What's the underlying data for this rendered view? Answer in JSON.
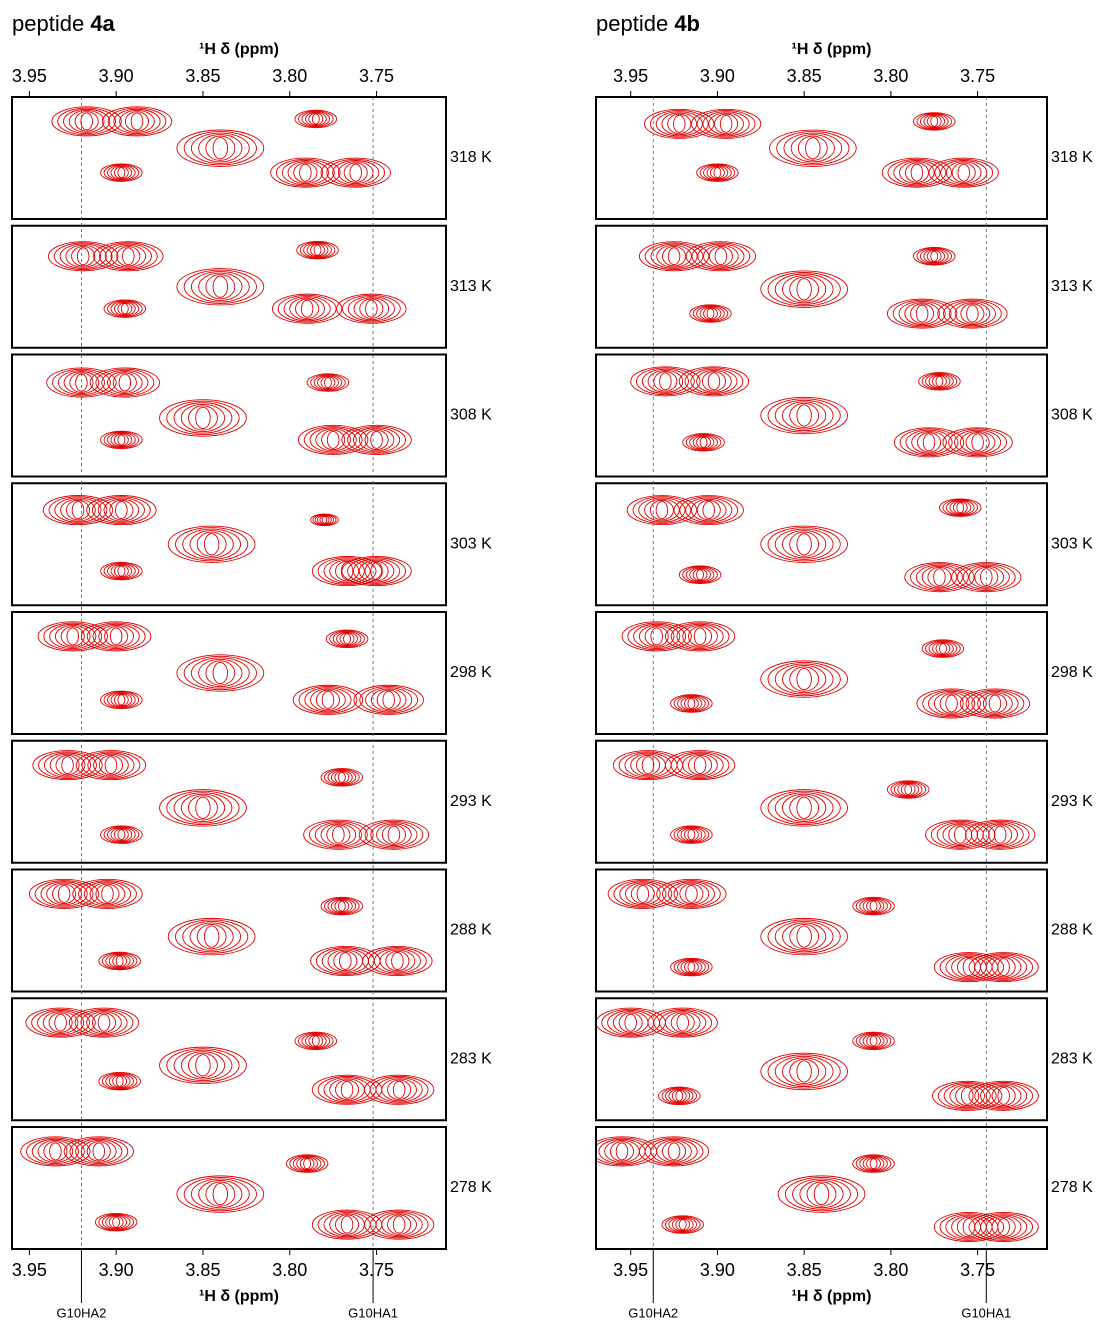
{
  "chart_data": [
    {
      "type": "contour",
      "title": "peptide",
      "title_bold": "4a",
      "xlabel": "¹H δ (ppm)",
      "color": "#e00000",
      "xlim": [
        3.96,
        3.71
      ],
      "xticks": [
        3.95,
        {
          "value": 3.9,
          "label": "3.90"
        },
        3.85,
        {
          "value": 3.8,
          "label": "3.80"
        },
        3.75
      ],
      "ylim": [
        0,
        1
      ],
      "reference_lines": [
        {
          "value": 3.92,
          "label": "G10HA2"
        },
        {
          "value": 3.752,
          "label": "G10HA1"
        }
      ],
      "panels": [
        {
          "label": "318 K",
          "peaks": [
            [
              3.917,
              0.2,
              0.02
            ],
            [
              3.888,
              0.2,
              0.02
            ],
            [
              3.785,
              0.18,
              0.012
            ],
            [
              3.897,
              0.62,
              0.012
            ],
            [
              3.791,
              0.62,
              0.02
            ],
            [
              3.762,
              0.62,
              0.02
            ],
            [
              3.84,
              0.42,
              0.025
            ]
          ]
        },
        {
          "label": "313 K",
          "peaks": [
            [
              3.919,
              0.25,
              0.02
            ],
            [
              3.893,
              0.25,
              0.02
            ],
            [
              3.784,
              0.2,
              0.012
            ],
            [
              3.895,
              0.68,
              0.012
            ],
            [
              3.79,
              0.68,
              0.02
            ],
            [
              3.753,
              0.68,
              0.02
            ],
            [
              3.84,
              0.5,
              0.025
            ]
          ]
        },
        {
          "label": "308 K",
          "peaks": [
            [
              3.92,
              0.23,
              0.02
            ],
            [
              3.895,
              0.23,
              0.02
            ],
            [
              3.778,
              0.23,
              0.012
            ],
            [
              3.897,
              0.7,
              0.012
            ],
            [
              3.775,
              0.7,
              0.02
            ],
            [
              3.75,
              0.7,
              0.02
            ],
            [
              3.85,
              0.52,
              0.025
            ]
          ]
        },
        {
          "label": "303 K",
          "peaks": [
            [
              3.922,
              0.22,
              0.02
            ],
            [
              3.897,
              0.22,
              0.02
            ],
            [
              3.78,
              0.3,
              0.008
            ],
            [
              3.897,
              0.72,
              0.012
            ],
            [
              3.767,
              0.72,
              0.02
            ],
            [
              3.75,
              0.72,
              0.02
            ],
            [
              3.845,
              0.5,
              0.025
            ]
          ]
        },
        {
          "label": "298 K",
          "peaks": [
            [
              3.925,
              0.2,
              0.02
            ],
            [
              3.9,
              0.2,
              0.02
            ],
            [
              3.767,
              0.22,
              0.012
            ],
            [
              3.897,
              0.72,
              0.012
            ],
            [
              3.778,
              0.72,
              0.02
            ],
            [
              3.743,
              0.72,
              0.02
            ],
            [
              3.84,
              0.5,
              0.025
            ]
          ]
        },
        {
          "label": "293 K",
          "peaks": [
            [
              3.928,
              0.2,
              0.02
            ],
            [
              3.903,
              0.2,
              0.02
            ],
            [
              3.77,
              0.3,
              0.012
            ],
            [
              3.897,
              0.77,
              0.012
            ],
            [
              3.772,
              0.77,
              0.02
            ],
            [
              3.74,
              0.77,
              0.02
            ],
            [
              3.85,
              0.55,
              0.025
            ]
          ]
        },
        {
          "label": "288 K",
          "peaks": [
            [
              3.93,
              0.2,
              0.02
            ],
            [
              3.905,
              0.2,
              0.02
            ],
            [
              3.77,
              0.3,
              0.012
            ],
            [
              3.898,
              0.75,
              0.012
            ],
            [
              3.768,
              0.75,
              0.02
            ],
            [
              3.738,
              0.75,
              0.02
            ],
            [
              3.845,
              0.55,
              0.025
            ]
          ]
        },
        {
          "label": "283 K",
          "peaks": [
            [
              3.932,
              0.2,
              0.02
            ],
            [
              3.907,
              0.2,
              0.02
            ],
            [
              3.785,
              0.35,
              0.012
            ],
            [
              3.898,
              0.68,
              0.012
            ],
            [
              3.767,
              0.75,
              0.02
            ],
            [
              3.737,
              0.75,
              0.02
            ],
            [
              3.85,
              0.55,
              0.025
            ]
          ]
        },
        {
          "label": "278 K",
          "peaks": [
            [
              3.935,
              0.2,
              0.02
            ],
            [
              3.91,
              0.2,
              0.02
            ],
            [
              3.79,
              0.3,
              0.012
            ],
            [
              3.9,
              0.78,
              0.012
            ],
            [
              3.767,
              0.8,
              0.02
            ],
            [
              3.737,
              0.8,
              0.02
            ],
            [
              3.84,
              0.55,
              0.025
            ]
          ]
        }
      ]
    },
    {
      "type": "contour",
      "title": "peptide",
      "title_bold": "4b",
      "xlabel": "¹H δ (ppm)",
      "color": "#e00000",
      "xlim": [
        3.97,
        3.71
      ],
      "xticks": [
        3.95,
        {
          "value": 3.9,
          "label": "3.90"
        },
        3.85,
        {
          "value": 3.8,
          "label": "3.80"
        },
        3.75
      ],
      "ylim": [
        0,
        1
      ],
      "reference_lines": [
        {
          "value": 3.937,
          "label": "G10HA2"
        },
        {
          "value": 3.745,
          "label": "G10HA1"
        }
      ],
      "panels": [
        {
          "label": "318 K",
          "peaks": [
            [
              3.922,
              0.22,
              0.02
            ],
            [
              3.895,
              0.22,
              0.02
            ],
            [
              3.775,
              0.2,
              0.012
            ],
            [
              3.9,
              0.62,
              0.012
            ],
            [
              3.785,
              0.62,
              0.02
            ],
            [
              3.758,
              0.62,
              0.02
            ],
            [
              3.845,
              0.42,
              0.025
            ]
          ]
        },
        {
          "label": "313 K",
          "peaks": [
            [
              3.925,
              0.25,
              0.02
            ],
            [
              3.898,
              0.25,
              0.02
            ],
            [
              3.775,
              0.25,
              0.012
            ],
            [
              3.904,
              0.72,
              0.012
            ],
            [
              3.782,
              0.72,
              0.02
            ],
            [
              3.753,
              0.72,
              0.02
            ],
            [
              3.85,
              0.52,
              0.025
            ]
          ]
        },
        {
          "label": "308 K",
          "peaks": [
            [
              3.93,
              0.22,
              0.02
            ],
            [
              3.902,
              0.22,
              0.02
            ],
            [
              3.772,
              0.22,
              0.012
            ],
            [
              3.908,
              0.72,
              0.012
            ],
            [
              3.778,
              0.72,
              0.02
            ],
            [
              3.75,
              0.72,
              0.02
            ],
            [
              3.85,
              0.5,
              0.025
            ]
          ]
        },
        {
          "label": "303 K",
          "peaks": [
            [
              3.932,
              0.22,
              0.02
            ],
            [
              3.905,
              0.22,
              0.02
            ],
            [
              3.76,
              0.2,
              0.012
            ],
            [
              3.91,
              0.75,
              0.012
            ],
            [
              3.772,
              0.77,
              0.02
            ],
            [
              3.745,
              0.77,
              0.02
            ],
            [
              3.85,
              0.5,
              0.025
            ]
          ]
        },
        {
          "label": "298 K",
          "peaks": [
            [
              3.935,
              0.2,
              0.02
            ],
            [
              3.91,
              0.2,
              0.02
            ],
            [
              3.77,
              0.3,
              0.012
            ],
            [
              3.915,
              0.75,
              0.012
            ],
            [
              3.765,
              0.75,
              0.02
            ],
            [
              3.74,
              0.75,
              0.02
            ],
            [
              3.85,
              0.55,
              0.025
            ]
          ]
        },
        {
          "label": "293 K",
          "peaks": [
            [
              3.94,
              0.2,
              0.02
            ],
            [
              3.91,
              0.2,
              0.02
            ],
            [
              3.79,
              0.4,
              0.012
            ],
            [
              3.915,
              0.77,
              0.012
            ],
            [
              3.76,
              0.77,
              0.02
            ],
            [
              3.737,
              0.77,
              0.02
            ],
            [
              3.85,
              0.55,
              0.025
            ]
          ]
        },
        {
          "label": "288 K",
          "peaks": [
            [
              3.943,
              0.2,
              0.02
            ],
            [
              3.915,
              0.2,
              0.02
            ],
            [
              3.81,
              0.3,
              0.012
            ],
            [
              3.915,
              0.8,
              0.012
            ],
            [
              3.755,
              0.8,
              0.02
            ],
            [
              3.735,
              0.8,
              0.02
            ],
            [
              3.85,
              0.55,
              0.025
            ]
          ]
        },
        {
          "label": "283 K",
          "peaks": [
            [
              3.95,
              0.2,
              0.02
            ],
            [
              3.92,
              0.2,
              0.02
            ],
            [
              3.81,
              0.35,
              0.012
            ],
            [
              3.922,
              0.8,
              0.012
            ],
            [
              3.756,
              0.8,
              0.02
            ],
            [
              3.735,
              0.8,
              0.02
            ],
            [
              3.85,
              0.6,
              0.025
            ]
          ]
        },
        {
          "label": "278 K",
          "peaks": [
            [
              3.955,
              0.2,
              0.02
            ],
            [
              3.925,
              0.2,
              0.02
            ],
            [
              3.81,
              0.3,
              0.012
            ],
            [
              3.92,
              0.8,
              0.012
            ],
            [
              3.755,
              0.82,
              0.02
            ],
            [
              3.735,
              0.82,
              0.02
            ],
            [
              3.84,
              0.55,
              0.025
            ]
          ]
        }
      ]
    }
  ]
}
